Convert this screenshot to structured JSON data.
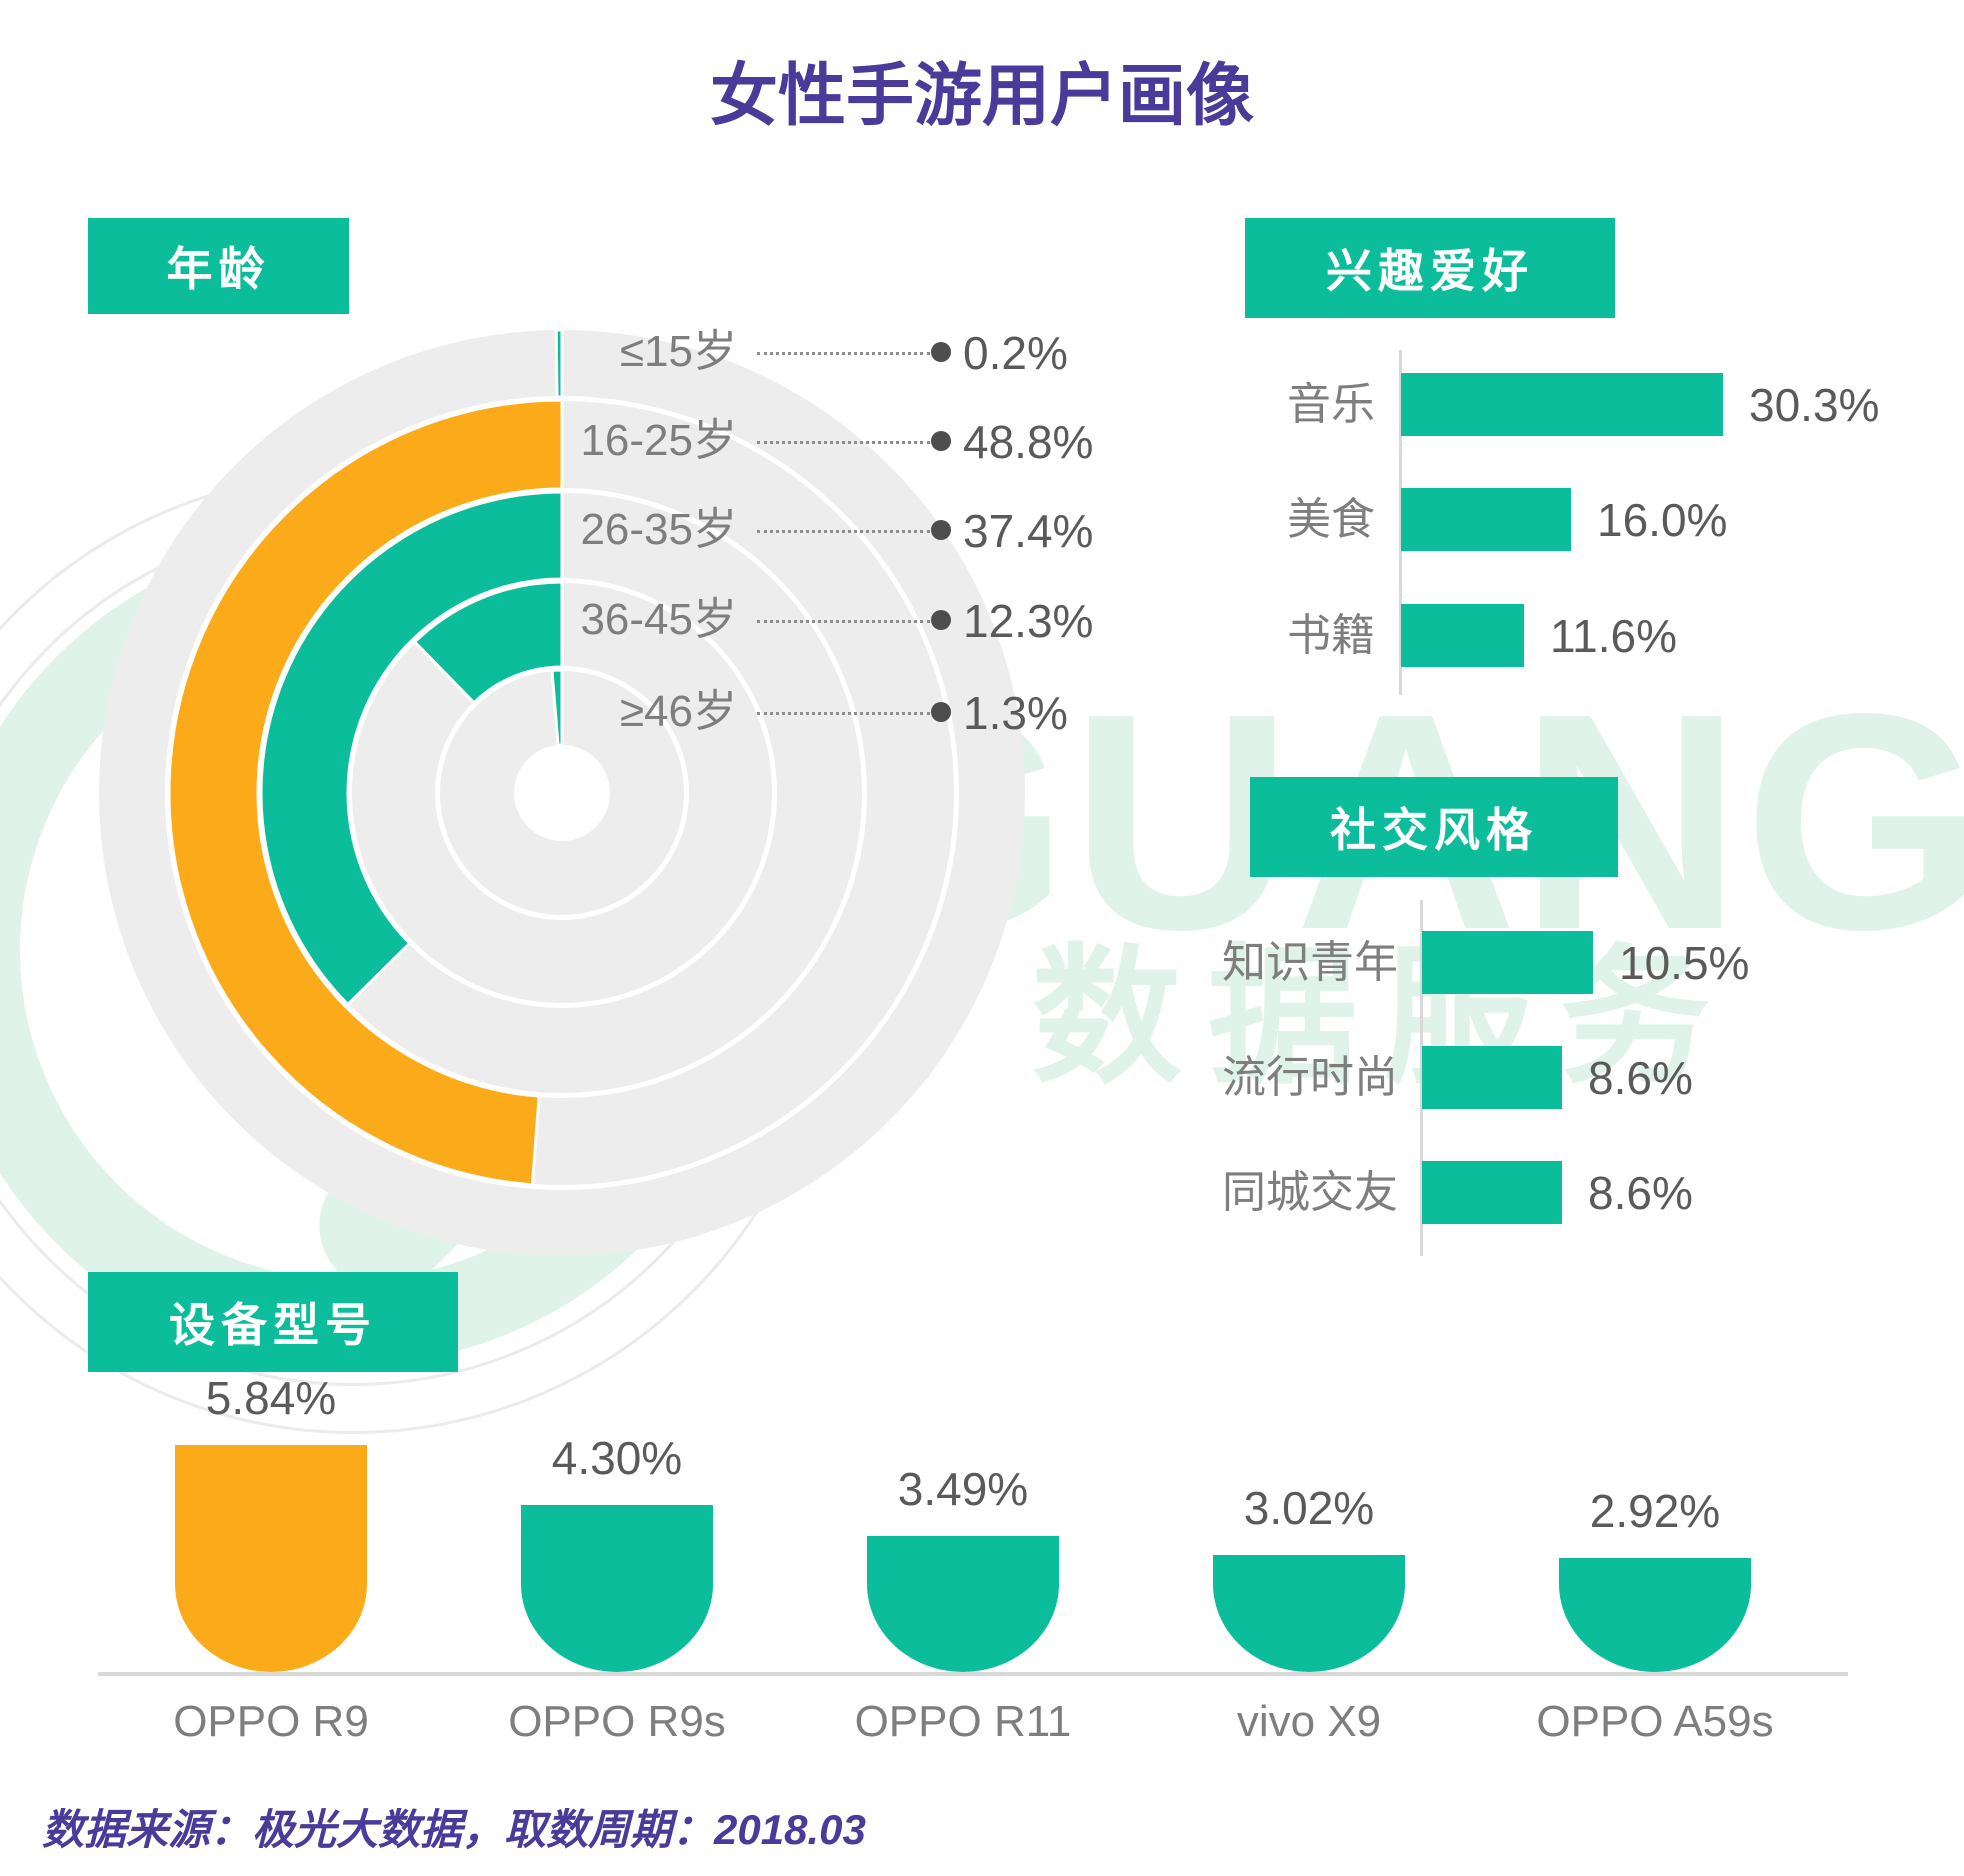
{
  "title": "女性手游用户画像",
  "colors": {
    "teal": "#0CBD9B",
    "orange": "#FBAB1A",
    "purple": "#4A3A99",
    "ring_gray": "#EDEDED",
    "label_gray": "#7E7E7E",
    "value_gray": "#5A5A5A",
    "dot_gray": "#4D4D4D",
    "axis_gray": "#D9D9D9",
    "watermark_mint": "#DFF3EA",
    "watermark_ring_gray": "#EBEBEB",
    "white": "#ffffff"
  },
  "age_section": {
    "label": "年龄",
    "rows": [
      {
        "label": "≤15岁",
        "value": 0.2,
        "display": "0.2%",
        "color_key": "teal"
      },
      {
        "label": "16-25岁",
        "value": 48.8,
        "display": "48.8%",
        "color_key": "orange"
      },
      {
        "label": "26-35岁",
        "value": 37.4,
        "display": "37.4%",
        "color_key": "teal"
      },
      {
        "label": "36-45岁",
        "value": 12.3,
        "display": "12.3%",
        "color_key": "teal"
      },
      {
        "label": "≥46岁",
        "value": 1.3,
        "display": "1.3%",
        "color_key": "teal"
      }
    ]
  },
  "interest_section": {
    "label": "兴趣爱好",
    "rows": [
      {
        "label": "音乐",
        "value": 30.3,
        "display": "30.3%"
      },
      {
        "label": "美食",
        "value": 16.0,
        "display": "16.0%"
      },
      {
        "label": "书籍",
        "value": 11.6,
        "display": "11.6%"
      }
    ]
  },
  "social_section": {
    "label": "社交风格",
    "rows": [
      {
        "label": "知识青年",
        "value": 10.5,
        "display": "10.5%"
      },
      {
        "label": "流行时尚",
        "value": 8.6,
        "display": "8.6%"
      },
      {
        "label": "同城交友",
        "value": 8.6,
        "display": "8.6%"
      }
    ]
  },
  "device_section": {
    "label": "设备型号",
    "rows": [
      {
        "label": "OPPO R9",
        "value": 5.84,
        "display": "5.84%",
        "color_key": "orange"
      },
      {
        "label": "OPPO R9s",
        "value": 4.3,
        "display": "4.30%",
        "color_key": "teal"
      },
      {
        "label": "OPPO R11",
        "value": 3.49,
        "display": "3.49%",
        "color_key": "teal"
      },
      {
        "label": "vivo X9",
        "value": 3.02,
        "display": "3.02%",
        "color_key": "teal"
      },
      {
        "label": "OPPO A59s",
        "value": 2.92,
        "display": "2.92%",
        "color_key": "teal"
      }
    ]
  },
  "footer": {
    "text": "数据来源：极光大数据，取数周期：2018.03"
  },
  "watermark": {
    "brand": "JIGUANG",
    "cjk": "极光 数据服务"
  },
  "chart_data": [
    {
      "type": "bar",
      "subtype": "radial-concentric-rings",
      "title": "年龄",
      "categories": [
        "≤15岁",
        "16-25岁",
        "26-35岁",
        "36-45岁",
        "≥46岁"
      ],
      "values": [
        0.2,
        48.8,
        37.4,
        12.3,
        1.3
      ],
      "unit": "%",
      "angle_start": "12-o'clock",
      "sweep_direction": "counterclockwise",
      "colors": [
        "teal",
        "orange",
        "teal",
        "teal",
        "teal"
      ],
      "legend_position": "right-of-rings with dotted leaders and dots"
    },
    {
      "type": "bar",
      "orientation": "horizontal",
      "title": "兴趣爱好",
      "categories": [
        "音乐",
        "美食",
        "书籍"
      ],
      "values": [
        30.3,
        16.0,
        11.6
      ],
      "unit": "%",
      "xlim": [
        0,
        32
      ],
      "grid": false,
      "value_labels": "right of bars"
    },
    {
      "type": "bar",
      "orientation": "horizontal",
      "title": "社交风格",
      "categories": [
        "知识青年",
        "流行时尚",
        "同城交友"
      ],
      "values": [
        10.5,
        8.6,
        8.6
      ],
      "unit": "%",
      "xlim": [
        0,
        11
      ],
      "grid": false,
      "value_labels": "right of bars"
    },
    {
      "type": "bar",
      "orientation": "vertical",
      "subtype": "rounded-bottom-u-bars",
      "title": "设备型号",
      "categories": [
        "OPPO R9",
        "OPPO R9s",
        "OPPO R11",
        "vivo X9",
        "OPPO A59s"
      ],
      "values": [
        5.84,
        4.3,
        3.49,
        3.02,
        2.92
      ],
      "unit": "%",
      "colors": [
        "orange",
        "teal",
        "teal",
        "teal",
        "teal"
      ],
      "value_labels": "above bars",
      "baseline": true
    }
  ]
}
